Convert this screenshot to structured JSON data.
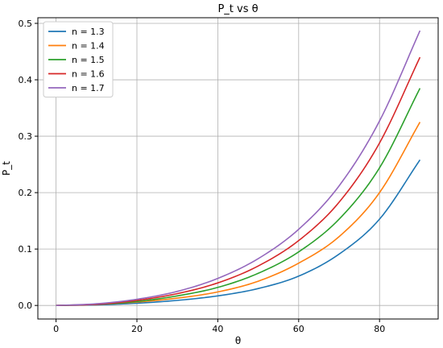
{
  "chart_data": {
    "type": "line",
    "title": "P_t vs θ",
    "xlabel": "θ",
    "ylabel": "P_t",
    "xlim": [
      -4.5,
      94.5
    ],
    "ylim": [
      -0.024,
      0.51
    ],
    "xticks": [
      0,
      20,
      40,
      60,
      80
    ],
    "yticks": [
      0.0,
      0.1,
      0.2,
      0.3,
      0.4,
      0.5
    ],
    "xtick_labels": [
      "0",
      "20",
      "40",
      "60",
      "80"
    ],
    "ytick_labels": [
      "0.0",
      "0.1",
      "0.2",
      "0.3",
      "0.4",
      "0.5"
    ],
    "grid": true,
    "legend_position": "top-left",
    "x": [
      0,
      10,
      20,
      30,
      40,
      50,
      60,
      70,
      80,
      90
    ],
    "series": [
      {
        "name": "n = 1.3",
        "color": "#1f77b4",
        "values": [
          0.0,
          0.001,
          0.004,
          0.009,
          0.017,
          0.03,
          0.052,
          0.091,
          0.153,
          0.258
        ]
      },
      {
        "name": "n = 1.4",
        "color": "#ff7f0e",
        "values": [
          0.0,
          0.002,
          0.006,
          0.013,
          0.024,
          0.043,
          0.075,
          0.122,
          0.2,
          0.325
        ]
      },
      {
        "name": "n = 1.5",
        "color": "#2ca02c",
        "values": [
          0.0,
          0.002,
          0.007,
          0.017,
          0.032,
          0.057,
          0.095,
          0.153,
          0.244,
          0.385
        ]
      },
      {
        "name": "n = 1.6",
        "color": "#d62728",
        "values": [
          0.0,
          0.002,
          0.009,
          0.021,
          0.04,
          0.07,
          0.115,
          0.183,
          0.288,
          0.44
        ]
      },
      {
        "name": "n = 1.7",
        "color": "#9467bd",
        "values": [
          0.0,
          0.003,
          0.011,
          0.025,
          0.048,
          0.083,
          0.135,
          0.212,
          0.327,
          0.487
        ]
      }
    ]
  }
}
